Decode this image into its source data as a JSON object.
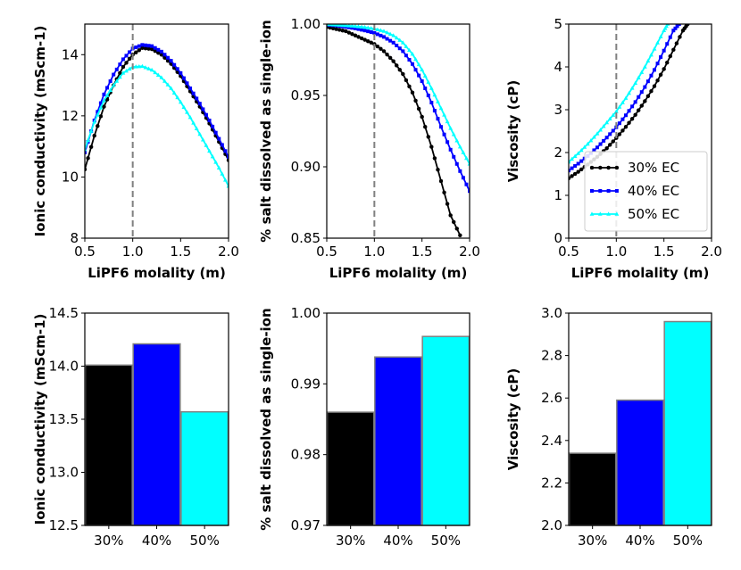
{
  "chart_data": [
    {
      "type": "line",
      "panel": "top-left",
      "xlabel": "LiPF6 molality (m)",
      "ylabel": "Ionic conductivity (mScm-1)",
      "xlim": [
        0.5,
        2.0
      ],
      "ylim": [
        8,
        15
      ],
      "xticks": [
        "0.5",
        "1.0",
        "1.5",
        "2.0"
      ],
      "yticks": [
        "8",
        "10",
        "12",
        "14"
      ],
      "vline": 1.0,
      "series": [
        {
          "name": "30% EC",
          "color": "#000000",
          "marker": "circle",
          "x": [
            0.5,
            0.6,
            0.7,
            0.8,
            0.9,
            1.0,
            1.1,
            1.2,
            1.3,
            1.4,
            1.5,
            1.6,
            1.7,
            1.8,
            1.9,
            2.0
          ],
          "y": [
            10.25,
            11.35,
            12.3,
            13.0,
            13.6,
            14.0,
            14.22,
            14.18,
            14.0,
            13.7,
            13.3,
            12.8,
            12.3,
            11.75,
            11.15,
            10.55
          ]
        },
        {
          "name": "40% EC",
          "color": "#0000ff",
          "marker": "square",
          "x": [
            0.5,
            0.6,
            0.7,
            0.8,
            0.9,
            1.0,
            1.1,
            1.2,
            1.3,
            1.4,
            1.5,
            1.6,
            1.7,
            1.8,
            1.9,
            2.0
          ],
          "y": [
            10.8,
            11.85,
            12.7,
            13.35,
            13.85,
            14.2,
            14.32,
            14.28,
            14.1,
            13.8,
            13.4,
            12.9,
            12.4,
            11.85,
            11.25,
            10.65
          ]
        },
        {
          "name": "50% EC",
          "color": "#00ffff",
          "marker": "triangle",
          "x": [
            0.5,
            0.6,
            0.7,
            0.8,
            0.9,
            1.0,
            1.1,
            1.2,
            1.3,
            1.4,
            1.5,
            1.6,
            1.7,
            1.8,
            1.9,
            2.0
          ],
          "y": [
            10.9,
            11.8,
            12.5,
            13.0,
            13.4,
            13.6,
            13.62,
            13.5,
            13.25,
            12.9,
            12.45,
            11.95,
            11.4,
            10.85,
            10.3,
            9.7
          ]
        }
      ]
    },
    {
      "type": "line",
      "panel": "top-middle",
      "xlabel": "LiPF6 molality (m)",
      "ylabel": "% salt dissolved as single-ion",
      "xlim": [
        0.5,
        2.0
      ],
      "ylim": [
        0.85,
        1.0
      ],
      "xticks": [
        "0.5",
        "1.0",
        "1.5",
        "2.0"
      ],
      "yticks": [
        "0.85",
        "0.90",
        "0.95",
        "1.00"
      ],
      "vline": 1.0,
      "series": [
        {
          "name": "30% EC",
          "color": "#000000",
          "marker": "circle",
          "x": [
            0.5,
            0.6,
            0.7,
            0.8,
            0.9,
            1.0,
            1.1,
            1.2,
            1.3,
            1.4,
            1.5,
            1.6,
            1.7,
            1.8,
            1.9
          ],
          "y": [
            0.998,
            0.9965,
            0.995,
            0.992,
            0.989,
            0.986,
            0.981,
            0.974,
            0.965,
            0.952,
            0.935,
            0.914,
            0.89,
            0.866,
            0.852
          ]
        },
        {
          "name": "40% EC",
          "color": "#0000ff",
          "marker": "square",
          "x": [
            0.5,
            0.6,
            0.7,
            0.8,
            0.9,
            1.0,
            1.1,
            1.2,
            1.3,
            1.4,
            1.5,
            1.6,
            1.7,
            1.8,
            1.9,
            2.0
          ],
          "y": [
            0.9995,
            0.999,
            0.998,
            0.997,
            0.9955,
            0.9938,
            0.991,
            0.987,
            0.981,
            0.972,
            0.96,
            0.945,
            0.928,
            0.912,
            0.897,
            0.883
          ]
        },
        {
          "name": "50% EC",
          "color": "#00ffff",
          "marker": "triangle",
          "x": [
            0.5,
            0.6,
            0.7,
            0.8,
            0.9,
            1.0,
            1.1,
            1.2,
            1.3,
            1.4,
            1.5,
            1.6,
            1.7,
            1.8,
            1.9,
            2.0
          ],
          "y": [
            0.9998,
            0.9995,
            0.999,
            0.9985,
            0.9978,
            0.9967,
            0.995,
            0.992,
            0.987,
            0.979,
            0.968,
            0.955,
            0.941,
            0.927,
            0.914,
            0.902
          ]
        }
      ]
    },
    {
      "type": "line",
      "panel": "top-right",
      "xlabel": "LiPF6 molality (m)",
      "ylabel": "Viscosity (cP)",
      "xlim": [
        0.5,
        2.0
      ],
      "ylim": [
        0,
        5
      ],
      "xticks": [
        "0.5",
        "1.0",
        "1.5",
        "2.0"
      ],
      "yticks": [
        "0",
        "1",
        "2",
        "3",
        "4",
        "5"
      ],
      "vline": 1.0,
      "legend": "lower-right",
      "series": [
        {
          "name": "30% EC",
          "color": "#000000",
          "marker": "circle",
          "x": [
            0.5,
            0.6,
            0.7,
            0.8,
            0.9,
            1.0,
            1.1,
            1.2,
            1.3,
            1.4,
            1.5,
            1.6,
            1.7,
            1.75
          ],
          "y": [
            1.4,
            1.55,
            1.72,
            1.9,
            2.1,
            2.34,
            2.6,
            2.88,
            3.2,
            3.55,
            3.95,
            4.4,
            4.85,
            5.0
          ]
        },
        {
          "name": "40% EC",
          "color": "#0000ff",
          "marker": "square",
          "x": [
            0.5,
            0.6,
            0.7,
            0.8,
            0.9,
            1.0,
            1.1,
            1.2,
            1.3,
            1.4,
            1.5,
            1.6,
            1.66
          ],
          "y": [
            1.58,
            1.74,
            1.92,
            2.12,
            2.35,
            2.59,
            2.87,
            3.18,
            3.53,
            3.93,
            4.38,
            4.85,
            5.0
          ]
        },
        {
          "name": "50% EC",
          "color": "#00ffff",
          "marker": "triangle",
          "x": [
            0.5,
            0.6,
            0.7,
            0.8,
            0.9,
            1.0,
            1.1,
            1.2,
            1.3,
            1.4,
            1.5,
            1.54
          ],
          "y": [
            1.78,
            1.98,
            2.2,
            2.44,
            2.7,
            2.96,
            3.27,
            3.62,
            4.0,
            4.42,
            4.85,
            5.0
          ]
        }
      ]
    },
    {
      "type": "bar",
      "panel": "bottom-left",
      "ylabel": "Ionic conductivity (mScm-1)",
      "categories": [
        "30%",
        "40%",
        "50%"
      ],
      "values": [
        14.01,
        14.21,
        13.57
      ],
      "colors": [
        "#000000",
        "#0000ff",
        "#00ffff"
      ],
      "ylim": [
        12.5,
        14.5
      ],
      "yticks": [
        "12.5",
        "13.0",
        "13.5",
        "14.0",
        "14.5"
      ]
    },
    {
      "type": "bar",
      "panel": "bottom-middle",
      "ylabel": "% salt dissolved as single-ion",
      "categories": [
        "30%",
        "40%",
        "50%"
      ],
      "values": [
        0.986,
        0.9938,
        0.9967
      ],
      "colors": [
        "#000000",
        "#0000ff",
        "#00ffff"
      ],
      "ylim": [
        0.97,
        1.0
      ],
      "yticks": [
        "0.97",
        "0.98",
        "0.99",
        "1.00"
      ]
    },
    {
      "type": "bar",
      "panel": "bottom-right",
      "ylabel": "Viscosity (cP)",
      "categories": [
        "30%",
        "40%",
        "50%"
      ],
      "values": [
        2.34,
        2.59,
        2.96
      ],
      "colors": [
        "#000000",
        "#0000ff",
        "#00ffff"
      ],
      "ylim": [
        2.0,
        3.0
      ],
      "yticks": [
        "2.0",
        "2.2",
        "2.4",
        "2.6",
        "2.8",
        "3.0"
      ]
    }
  ]
}
